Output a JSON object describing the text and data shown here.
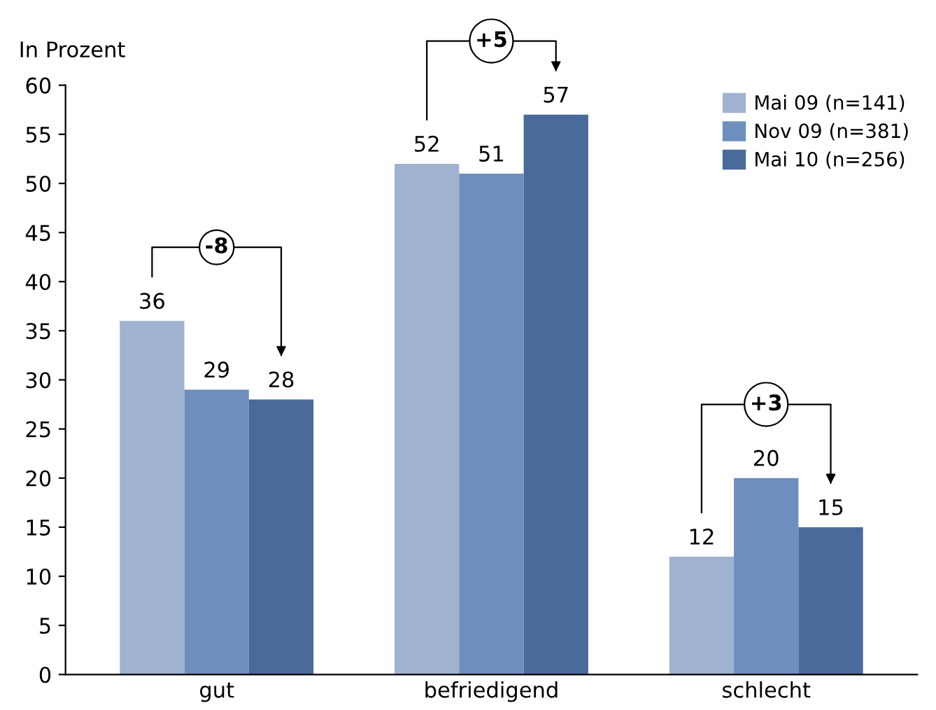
{
  "chart_data": {
    "type": "bar",
    "ylabel": "In Prozent",
    "categories": [
      "gut",
      "befriedigend",
      "schlecht"
    ],
    "series": [
      {
        "name": "Mai 09 (n=141)",
        "color": "#9fb3d1",
        "values": [
          36,
          52,
          12
        ]
      },
      {
        "name": "Nov 09 (n=381)",
        "color": "#6e8fbd",
        "values": [
          29,
          51,
          20
        ]
      },
      {
        "name": "Mai 10 (n=256)",
        "color": "#4a6a9b",
        "values": [
          28,
          57,
          15
        ]
      }
    ],
    "ylim": [
      0,
      60
    ],
    "yticks": [
      0,
      5,
      10,
      15,
      20,
      25,
      30,
      35,
      40,
      45,
      50,
      55,
      60
    ],
    "data_labels": true,
    "grid": false,
    "legend": "top right",
    "annotations": [
      "-8",
      "+5",
      "+3"
    ]
  }
}
